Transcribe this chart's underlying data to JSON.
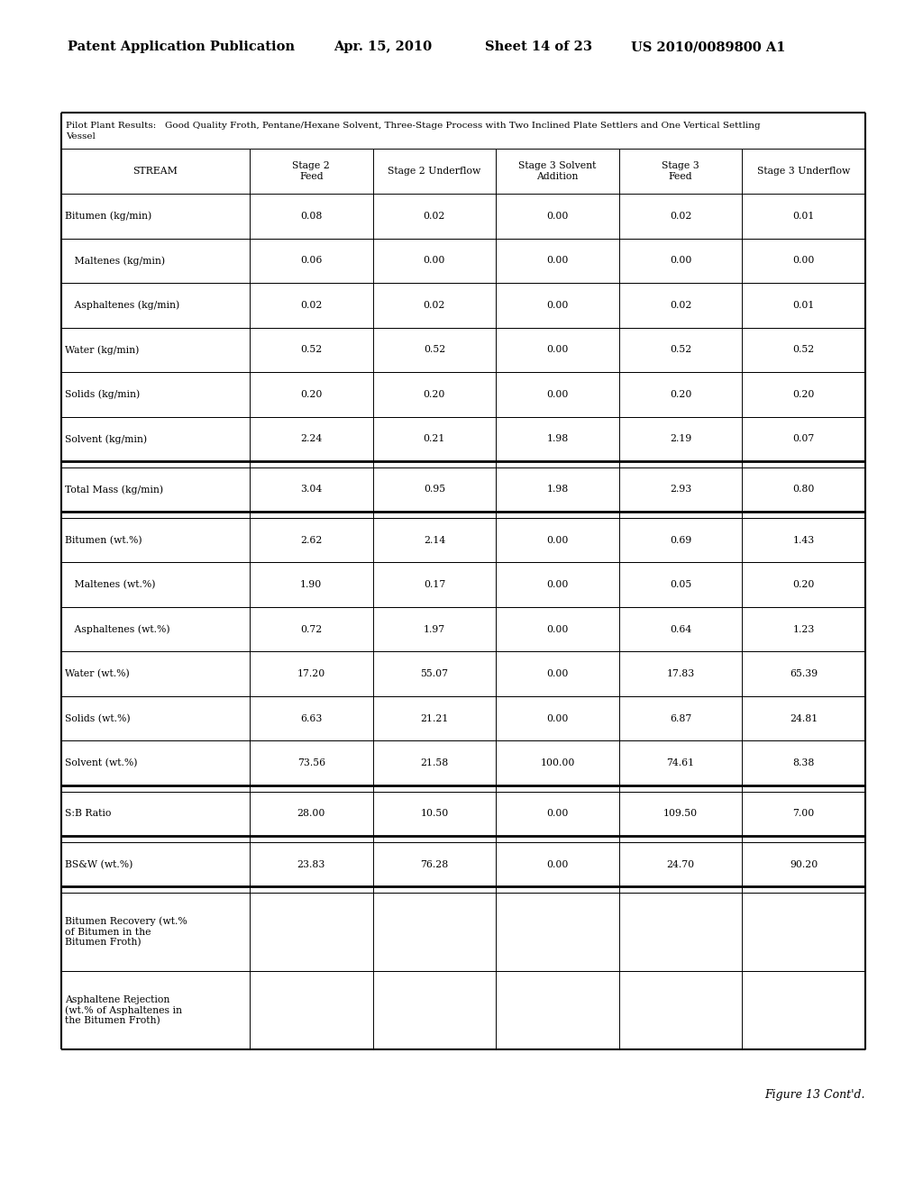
{
  "header_line1": "Patent Application Publication",
  "header_date": "Apr. 15, 2010",
  "header_sheet": "Sheet 14 of 23",
  "header_patent": "US 2010/0089800 A1",
  "col_headers": [
    "STREAM",
    "Stage 2\nFeed",
    "Stage 2 Underflow",
    "Stage 3 Solvent\nAddition",
    "Stage 3\nFeed",
    "Stage 3 Underflow"
  ],
  "table_title_top": "Pilot Plant Results:   Good Quality Froth, Pentane/Hexane Solvent, Three-Stage Process with Two Inclined Plate Settlers and One Vertical Settling",
  "table_title_bot": "Vessel",
  "stream_labels": [
    "Bitumen (kg/min)",
    "   Maltenes (kg/min)",
    "   Asphaltenes (kg/min)",
    "Water (kg/min)",
    "Solids (kg/min)",
    "Solvent (kg/min)",
    "Total Mass (kg/min)",
    "Bitumen (wt.%)",
    "   Maltenes (wt.%)",
    "   Asphaltenes (wt.%)",
    "Water (wt.%)",
    "Solids (wt.%)",
    "Solvent (wt.%)",
    "S:B Ratio",
    "BS&W (wt.%)",
    "Bitumen Recovery (wt.%\nof Bitumen in the\nBitumen Froth)",
    "Asphaltene Rejection\n(wt.% of Asphaltenes in\nthe Bitumen Froth)"
  ],
  "data_values": [
    [
      "0.08",
      "0.02",
      "0.00",
      "0.02",
      "0.01"
    ],
    [
      "0.06",
      "0.00",
      "0.00",
      "0.00",
      "0.00"
    ],
    [
      "0.02",
      "0.02",
      "0.00",
      "0.02",
      "0.01"
    ],
    [
      "0.52",
      "0.52",
      "0.00",
      "0.52",
      "0.52"
    ],
    [
      "0.20",
      "0.20",
      "0.00",
      "0.20",
      "0.20"
    ],
    [
      "2.24",
      "0.21",
      "1.98",
      "2.19",
      "0.07"
    ],
    [
      "3.04",
      "0.95",
      "1.98",
      "2.93",
      "0.80"
    ],
    [
      "2.62",
      "2.14",
      "0.00",
      "0.69",
      "1.43"
    ],
    [
      "1.90",
      "0.17",
      "0.00",
      "0.05",
      "0.20"
    ],
    [
      "0.72",
      "1.97",
      "0.00",
      "0.64",
      "1.23"
    ],
    [
      "17.20",
      "55.07",
      "0.00",
      "17.83",
      "65.39"
    ],
    [
      "6.63",
      "21.21",
      "0.00",
      "6.87",
      "24.81"
    ],
    [
      "73.56",
      "21.58",
      "100.00",
      "74.61",
      "8.38"
    ],
    [
      "28.00",
      "10.50",
      "0.00",
      "109.50",
      "7.00"
    ],
    [
      "23.83",
      "76.28",
      "0.00",
      "24.70",
      "90.20"
    ],
    [
      "",
      "",
      "",
      "",
      ""
    ],
    [
      "",
      "",
      "",
      "",
      ""
    ]
  ],
  "group_separators_after": [
    5,
    6,
    12,
    13,
    14
  ],
  "figure_caption": "Figure 13 Cont'd.",
  "background_color": "#ffffff",
  "text_color": "#000000",
  "border_color": "#000000"
}
